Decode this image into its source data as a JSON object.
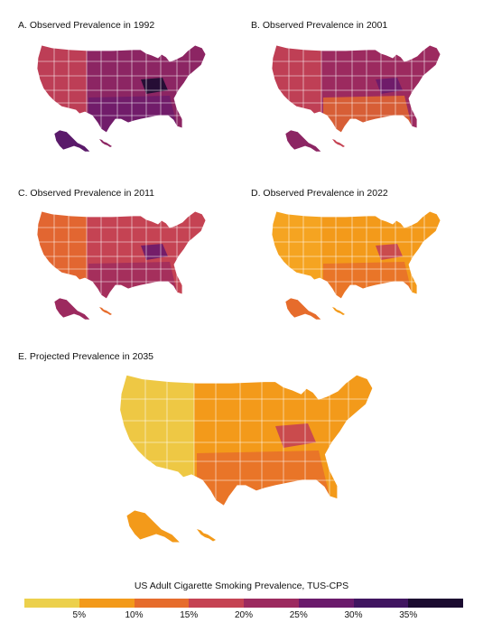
{
  "panels": {
    "a": {
      "title": "A. Observed Prevalence in 1992"
    },
    "b": {
      "title": "B. Observed Prevalence in 2001"
    },
    "c": {
      "title": "C. Observed Prevalence in 2011"
    },
    "d": {
      "title": "D. Observed Prevalence in 2022"
    },
    "e": {
      "title": "E. Projected Prevalence in 2035"
    }
  },
  "legend": {
    "title": "US Adult Cigarette Smoking Prevalence, TUS-CPS",
    "ticks": [
      "5%",
      "10%",
      "15%",
      "20%",
      "25%",
      "30%",
      "35%"
    ],
    "colors": [
      "#ecd04c",
      "#f39a1a",
      "#e66c2c",
      "#c54353",
      "#9c2a5f",
      "#6a1a6b",
      "#401560",
      "#1b0b30"
    ]
  },
  "colors": {
    "a": {
      "base": "#8c2563",
      "west": "#c54353",
      "south": "#6a1a6b",
      "dark": "#1b0b30",
      "alaska": "#5a1a6a",
      "hawaii": "#8c2563"
    },
    "b": {
      "base": "#9c2a5f",
      "west": "#c54353",
      "south": "#e66c2c",
      "dark": "#6a1a6b",
      "alaska": "#8c2563",
      "hawaii": "#c54353"
    },
    "c": {
      "base": "#c54353",
      "west": "#e66c2c",
      "south": "#9c2a5f",
      "dark": "#6a1a6b",
      "alaska": "#9c2a5f",
      "hawaii": "#e66c2c"
    },
    "d": {
      "base": "#f39a1a",
      "west": "#f5a623",
      "south": "#e66c2c",
      "dark": "#c54353",
      "alaska": "#e66c2c",
      "hawaii": "#f39a1a"
    },
    "e": {
      "base": "#f39a1a",
      "west": "#ecd04c",
      "south": "#e66c2c",
      "dark": "#c54353",
      "alaska": "#f39a1a",
      "hawaii": "#f39a1a"
    }
  }
}
